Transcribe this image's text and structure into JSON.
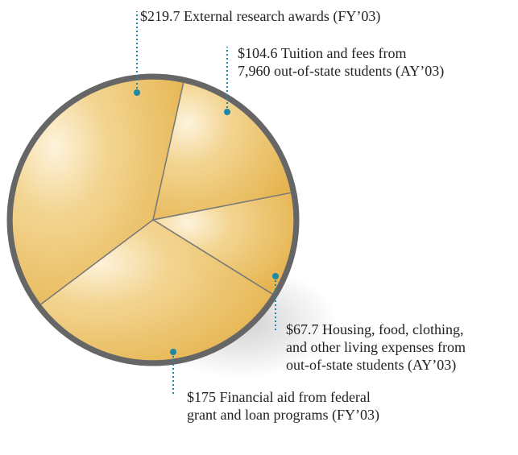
{
  "chart_data": {
    "type": "pie",
    "categories": [
      "External research awards (FY’03)",
      "Tuition and fees from\n7,960 out-of-state students (AY’03)",
      "Housing, food, clothing,\nand other living expenses from\nout-of-state students (AY’03)",
      "Financial aid from federal\ngrant and loan programs (FY’03)"
    ],
    "values": [
      219.7,
      104.6,
      67.7,
      175
    ],
    "value_labels": [
      "$219.7",
      "$104.6",
      "$67.7",
      "$175"
    ],
    "color": "#f0c86c"
  }
}
